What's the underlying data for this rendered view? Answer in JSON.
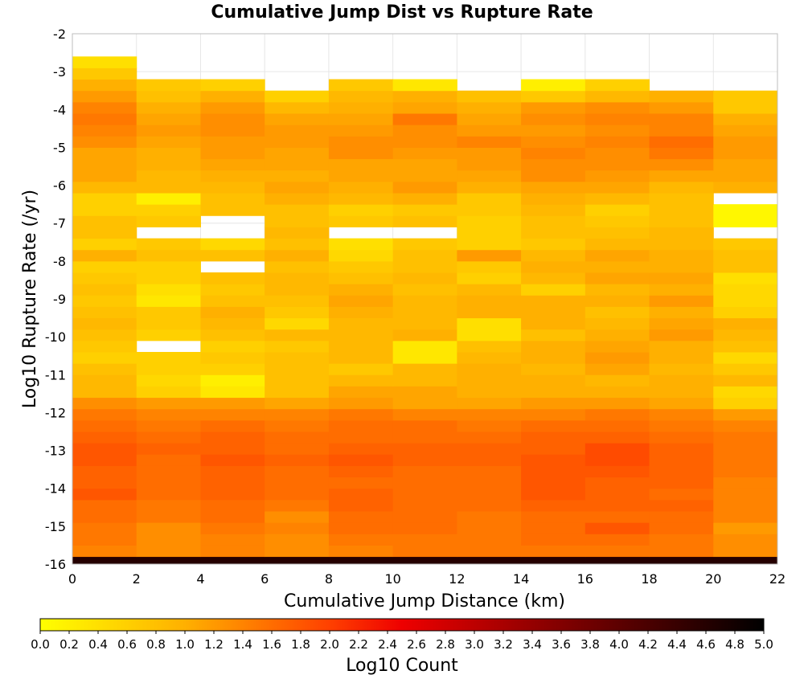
{
  "chart_data": {
    "type": "heatmap",
    "title": "Cumulative Jump Dist vs Rupture Rate",
    "xlabel": "Cumulative Jump Distance (km)",
    "ylabel": "Log10 Rupture Rate (/yr)",
    "xlim": [
      0,
      22
    ],
    "ylim": [
      -16,
      -2
    ],
    "x_ticks": [
      "0",
      "2",
      "4",
      "6",
      "8",
      "10",
      "12",
      "14",
      "16",
      "18",
      "20",
      "22"
    ],
    "y_ticks": [
      "-2",
      "-3",
      "-4",
      "-5",
      "-6",
      "-7",
      "-8",
      "-9",
      "-10",
      "-11",
      "-12",
      "-13",
      "-14",
      "-15",
      "-16"
    ],
    "x_bin_starts": [
      0,
      2,
      4,
      6,
      8,
      10,
      12,
      14,
      16,
      18,
      20
    ],
    "x_bin_width": 2,
    "y_bin_height": 0.3,
    "y_bin_bottoms": [
      -16.1,
      -15.8,
      -15.5,
      -15.2,
      -14.9,
      -14.6,
      -14.3,
      -14.0,
      -13.7,
      -13.4,
      -13.1,
      -12.8,
      -12.5,
      -12.2,
      -11.9,
      -11.6,
      -11.3,
      -11.0,
      -10.7,
      -10.4,
      -10.1,
      -9.8,
      -9.5,
      -9.2,
      -8.9,
      -8.6,
      -8.3,
      -8.0,
      -7.7,
      -7.4,
      -7.1,
      -6.8,
      -6.5,
      -6.2,
      -5.9,
      -5.6,
      -5.3,
      -5.0,
      -4.7,
      -4.4,
      -4.1,
      -3.8,
      -3.5,
      -3.2,
      -2.9
    ],
    "log10_counts": [
      [
        4.6,
        4.6,
        4.6,
        4.6,
        4.6,
        4.6,
        4.6,
        4.6,
        4.6,
        4.6,
        4.6
      ],
      [
        1.4,
        1.3,
        1.4,
        1.3,
        1.4,
        1.5,
        1.5,
        1.5,
        1.5,
        1.5,
        1.3
      ],
      [
        1.5,
        1.3,
        1.4,
        1.3,
        1.5,
        1.5,
        1.5,
        1.6,
        1.6,
        1.5,
        1.3
      ],
      [
        1.5,
        1.3,
        1.5,
        1.4,
        1.6,
        1.6,
        1.5,
        1.6,
        1.8,
        1.6,
        1.2
      ],
      [
        1.6,
        1.5,
        1.6,
        1.3,
        1.6,
        1.6,
        1.5,
        1.6,
        1.6,
        1.6,
        1.4
      ],
      [
        1.6,
        1.5,
        1.6,
        1.5,
        1.7,
        1.6,
        1.6,
        1.7,
        1.7,
        1.7,
        1.4
      ],
      [
        1.8,
        1.6,
        1.7,
        1.6,
        1.7,
        1.6,
        1.6,
        1.8,
        1.7,
        1.6,
        1.4
      ],
      [
        1.7,
        1.6,
        1.7,
        1.6,
        1.6,
        1.6,
        1.6,
        1.8,
        1.7,
        1.7,
        1.4
      ],
      [
        1.7,
        1.6,
        1.7,
        1.6,
        1.7,
        1.6,
        1.6,
        1.8,
        1.8,
        1.7,
        1.5
      ],
      [
        1.8,
        1.6,
        1.8,
        1.7,
        1.8,
        1.7,
        1.7,
        1.8,
        1.9,
        1.7,
        1.5
      ],
      [
        1.8,
        1.7,
        1.7,
        1.6,
        1.7,
        1.7,
        1.7,
        1.7,
        1.9,
        1.7,
        1.5
      ],
      [
        1.7,
        1.6,
        1.7,
        1.6,
        1.6,
        1.6,
        1.6,
        1.7,
        1.7,
        1.6,
        1.5
      ],
      [
        1.6,
        1.5,
        1.6,
        1.5,
        1.6,
        1.6,
        1.5,
        1.6,
        1.6,
        1.5,
        1.4
      ],
      [
        1.5,
        1.4,
        1.4,
        1.4,
        1.5,
        1.4,
        1.4,
        1.4,
        1.5,
        1.4,
        1.2
      ],
      [
        1.3,
        1.2,
        1.2,
        1.1,
        1.2,
        1.1,
        1.1,
        1.2,
        1.2,
        1.1,
        0.6
      ],
      [
        0.9,
        0.6,
        0.3,
        0.8,
        1.1,
        1.1,
        1.0,
        1.0,
        1.0,
        1.0,
        0.5
      ],
      [
        0.9,
        0.5,
        0.2,
        0.8,
        0.9,
        0.9,
        1.0,
        1.0,
        0.9,
        1.0,
        0.9
      ],
      [
        0.8,
        0.6,
        0.6,
        0.8,
        0.7,
        0.9,
        1.0,
        0.9,
        1.1,
        0.9,
        0.7
      ],
      [
        0.6,
        0.6,
        0.7,
        0.8,
        0.9,
        0.3,
        0.9,
        1.0,
        1.2,
        1.0,
        0.5
      ],
      [
        0.7,
        null,
        0.6,
        0.7,
        0.9,
        0.3,
        0.8,
        1.0,
        1.1,
        1.0,
        0.8
      ],
      [
        0.8,
        0.6,
        0.8,
        0.9,
        0.9,
        1.0,
        0.4,
        0.8,
        1.0,
        1.2,
        0.9
      ],
      [
        0.9,
        0.7,
        0.9,
        0.5,
        0.9,
        0.9,
        0.4,
        1.0,
        0.9,
        1.1,
        1.0
      ],
      [
        0.8,
        0.7,
        1.0,
        0.7,
        1.0,
        0.9,
        1.0,
        1.0,
        0.8,
        1.0,
        0.6
      ],
      [
        0.7,
        0.3,
        0.8,
        0.8,
        1.1,
        0.9,
        1.0,
        1.0,
        1.0,
        1.2,
        0.5
      ],
      [
        0.8,
        0.4,
        0.7,
        0.9,
        1.0,
        0.8,
        0.9,
        0.6,
        0.9,
        1.0,
        0.5
      ],
      [
        0.7,
        0.6,
        0.8,
        0.9,
        0.8,
        0.9,
        0.6,
        0.9,
        1.1,
        1.1,
        0.4
      ],
      [
        0.6,
        0.6,
        null,
        0.8,
        0.7,
        0.8,
        0.7,
        1.0,
        1.0,
        1.0,
        0.8
      ],
      [
        1.0,
        0.8,
        0.8,
        1.0,
        0.5,
        0.8,
        1.2,
        0.9,
        1.1,
        1.0,
        0.8
      ],
      [
        0.6,
        0.7,
        0.5,
        0.8,
        0.4,
        0.7,
        0.6,
        0.7,
        0.9,
        0.9,
        0.7
      ],
      [
        0.8,
        null,
        null,
        0.9,
        null,
        null,
        0.6,
        0.8,
        0.8,
        0.9,
        null
      ],
      [
        0.8,
        0.7,
        null,
        0.8,
        0.7,
        0.8,
        0.6,
        0.8,
        0.7,
        0.8,
        0.1
      ],
      [
        0.6,
        0.6,
        0.8,
        0.8,
        0.6,
        0.7,
        0.7,
        0.9,
        0.6,
        0.8,
        0.1
      ],
      [
        0.6,
        0.2,
        0.8,
        1.0,
        0.9,
        1.0,
        0.7,
        1.0,
        0.9,
        0.8,
        null
      ],
      [
        0.9,
        0.9,
        0.9,
        1.1,
        1.0,
        1.2,
        1.0,
        1.1,
        1.1,
        0.9,
        1.0
      ],
      [
        1.1,
        0.9,
        1.0,
        1.0,
        1.1,
        1.1,
        1.1,
        1.3,
        1.2,
        1.1,
        1.1
      ],
      [
        1.1,
        1.0,
        1.1,
        1.1,
        1.1,
        1.1,
        1.2,
        1.3,
        1.3,
        1.3,
        1.1
      ],
      [
        1.1,
        1.0,
        1.2,
        1.1,
        1.3,
        1.2,
        1.2,
        1.4,
        1.3,
        1.5,
        1.2
      ],
      [
        1.3,
        1.1,
        1.2,
        1.2,
        1.3,
        1.3,
        1.4,
        1.3,
        1.4,
        1.6,
        1.2
      ],
      [
        1.4,
        1.2,
        1.3,
        1.2,
        1.2,
        1.3,
        1.2,
        1.2,
        1.3,
        1.4,
        1.1
      ],
      [
        1.5,
        1.1,
        1.3,
        1.1,
        1.1,
        1.5,
        1.1,
        1.3,
        1.4,
        1.4,
        1.0
      ],
      [
        1.4,
        1.0,
        1.2,
        0.9,
        1.0,
        1.1,
        1.0,
        1.2,
        1.3,
        1.2,
        0.7
      ],
      [
        1.2,
        0.8,
        1.0,
        0.6,
        0.9,
        1.0,
        0.8,
        0.7,
        0.9,
        1.0,
        0.7
      ],
      [
        1.0,
        0.7,
        0.6,
        null,
        0.7,
        0.3,
        null,
        0.2,
        0.6,
        null,
        null
      ],
      [
        0.7,
        null,
        null,
        null,
        null,
        null,
        null,
        null,
        null,
        null,
        null
      ],
      [
        0.4,
        null,
        null,
        null,
        null,
        null,
        null,
        null,
        null,
        null,
        null
      ]
    ],
    "colorbar": {
      "label": "Log10 Count",
      "range": [
        0.0,
        5.0
      ],
      "ticks": [
        "0.0",
        "0.2",
        "0.4",
        "0.6",
        "0.8",
        "1.0",
        "1.2",
        "1.4",
        "1.6",
        "1.8",
        "2.0",
        "2.2",
        "2.4",
        "2.6",
        "2.8",
        "3.0",
        "3.2",
        "3.4",
        "3.6",
        "3.8",
        "4.0",
        "4.2",
        "4.4",
        "4.6",
        "4.8",
        "5.0"
      ],
      "stops": [
        {
          "v": 0.0,
          "color": "#ffff00"
        },
        {
          "v": 1.0,
          "color": "#ffb000"
        },
        {
          "v": 2.0,
          "color": "#ff4000"
        },
        {
          "v": 2.5,
          "color": "#ee0000"
        },
        {
          "v": 3.5,
          "color": "#8b0000"
        },
        {
          "v": 5.0,
          "color": "#000000"
        }
      ]
    },
    "grid": true,
    "legend": "bottom"
  }
}
